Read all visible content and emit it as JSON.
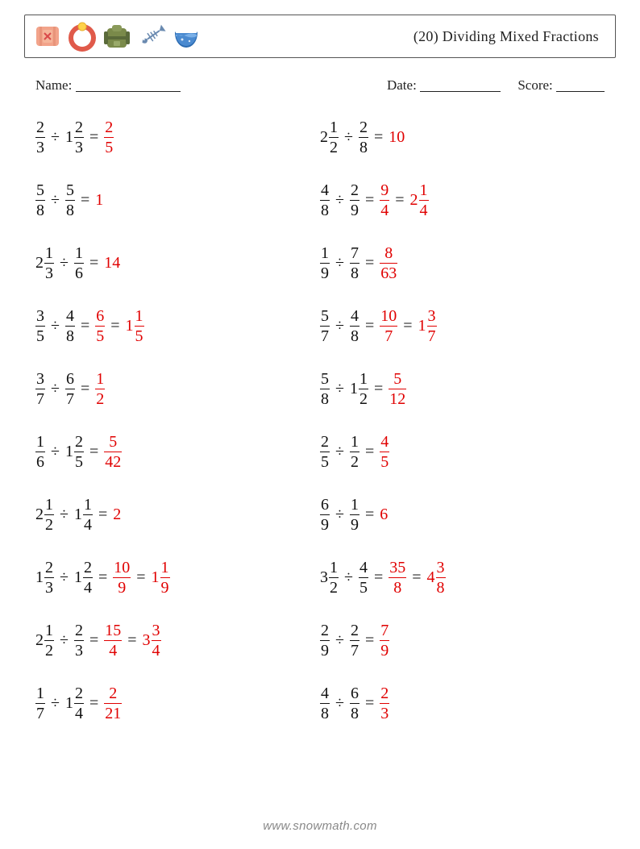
{
  "title": "(20) Dividing Mixed Fractions",
  "labels": {
    "name": "Name:",
    "date": "Date:",
    "score": "Score:"
  },
  "blank_widths": {
    "name": 130,
    "date": 100,
    "score": 60
  },
  "colors": {
    "text": "#111111",
    "answer": "#e00000",
    "border": "#555555",
    "footer": "#888888"
  },
  "icon_colors": {
    "bandage_body": "#f2a38a",
    "bandage_x": "#d94a4a",
    "ring_outer": "#e05a4a",
    "ring_gem": "#ffd24a",
    "backpack": "#7a8a4a",
    "backpack_strap": "#5a6a3a",
    "fishbone": "#6a8ab0",
    "bowl": "#4a8ad0",
    "bowl_rim": "#2a6ab0"
  },
  "footer": "www.snowmath.com",
  "columns": [
    [
      {
        "a": {
          "n": 2,
          "d": 3
        },
        "op": "÷",
        "b": {
          "w": 1,
          "n": 2,
          "d": 3
        },
        "ans": [
          {
            "n": 2,
            "d": 5
          }
        ]
      },
      {
        "a": {
          "n": 5,
          "d": 8
        },
        "op": "÷",
        "b": {
          "n": 5,
          "d": 8
        },
        "ans": [
          {
            "int": 1
          }
        ]
      },
      {
        "a": {
          "w": 2,
          "n": 1,
          "d": 3
        },
        "op": "÷",
        "b": {
          "n": 1,
          "d": 6
        },
        "ans": [
          {
            "int": 14
          }
        ]
      },
      {
        "a": {
          "n": 3,
          "d": 5
        },
        "op": "÷",
        "b": {
          "n": 4,
          "d": 8
        },
        "ans": [
          {
            "n": 6,
            "d": 5
          },
          {
            "w": 1,
            "n": 1,
            "d": 5
          }
        ]
      },
      {
        "a": {
          "n": 3,
          "d": 7
        },
        "op": "÷",
        "b": {
          "n": 6,
          "d": 7
        },
        "ans": [
          {
            "n": 1,
            "d": 2
          }
        ]
      },
      {
        "a": {
          "n": 1,
          "d": 6
        },
        "op": "÷",
        "b": {
          "w": 1,
          "n": 2,
          "d": 5
        },
        "ans": [
          {
            "n": 5,
            "d": 42
          }
        ]
      },
      {
        "a": {
          "w": 2,
          "n": 1,
          "d": 2
        },
        "op": "÷",
        "b": {
          "w": 1,
          "n": 1,
          "d": 4
        },
        "ans": [
          {
            "int": 2
          }
        ]
      },
      {
        "a": {
          "w": 1,
          "n": 2,
          "d": 3
        },
        "op": "÷",
        "b": {
          "w": 1,
          "n": 2,
          "d": 4
        },
        "ans": [
          {
            "n": 10,
            "d": 9
          },
          {
            "w": 1,
            "n": 1,
            "d": 9
          }
        ]
      },
      {
        "a": {
          "w": 2,
          "n": 1,
          "d": 2
        },
        "op": "÷",
        "b": {
          "n": 2,
          "d": 3
        },
        "ans": [
          {
            "n": 15,
            "d": 4
          },
          {
            "w": 3,
            "n": 3,
            "d": 4
          }
        ]
      },
      {
        "a": {
          "n": 1,
          "d": 7
        },
        "op": "÷",
        "b": {
          "w": 1,
          "n": 2,
          "d": 4
        },
        "ans": [
          {
            "n": 2,
            "d": 21
          }
        ]
      }
    ],
    [
      {
        "a": {
          "w": 2,
          "n": 1,
          "d": 2
        },
        "op": "÷",
        "b": {
          "n": 2,
          "d": 8
        },
        "ans": [
          {
            "int": 10
          }
        ]
      },
      {
        "a": {
          "n": 4,
          "d": 8
        },
        "op": "÷",
        "b": {
          "n": 2,
          "d": 9
        },
        "ans": [
          {
            "n": 9,
            "d": 4
          },
          {
            "w": 2,
            "n": 1,
            "d": 4
          }
        ]
      },
      {
        "a": {
          "n": 1,
          "d": 9
        },
        "op": "÷",
        "b": {
          "n": 7,
          "d": 8
        },
        "ans": [
          {
            "n": 8,
            "d": 63
          }
        ]
      },
      {
        "a": {
          "n": 5,
          "d": 7
        },
        "op": "÷",
        "b": {
          "n": 4,
          "d": 8
        },
        "ans": [
          {
            "n": 10,
            "d": 7
          },
          {
            "w": 1,
            "n": 3,
            "d": 7
          }
        ]
      },
      {
        "a": {
          "n": 5,
          "d": 8
        },
        "op": "÷",
        "b": {
          "w": 1,
          "n": 1,
          "d": 2
        },
        "ans": [
          {
            "n": 5,
            "d": 12
          }
        ]
      },
      {
        "a": {
          "n": 2,
          "d": 5
        },
        "op": "÷",
        "b": {
          "n": 1,
          "d": 2
        },
        "ans": [
          {
            "n": 4,
            "d": 5
          }
        ]
      },
      {
        "a": {
          "n": 6,
          "d": 9
        },
        "op": "÷",
        "b": {
          "n": 1,
          "d": 9
        },
        "ans": [
          {
            "int": 6
          }
        ]
      },
      {
        "a": {
          "w": 3,
          "n": 1,
          "d": 2
        },
        "op": "÷",
        "b": {
          "n": 4,
          "d": 5
        },
        "ans": [
          {
            "n": 35,
            "d": 8
          },
          {
            "w": 4,
            "n": 3,
            "d": 8
          }
        ]
      },
      {
        "a": {
          "n": 2,
          "d": 9
        },
        "op": "÷",
        "b": {
          "n": 2,
          "d": 7
        },
        "ans": [
          {
            "n": 7,
            "d": 9
          }
        ]
      },
      {
        "a": {
          "n": 4,
          "d": 8
        },
        "op": "÷",
        "b": {
          "n": 6,
          "d": 8
        },
        "ans": [
          {
            "n": 2,
            "d": 3
          }
        ]
      }
    ]
  ]
}
